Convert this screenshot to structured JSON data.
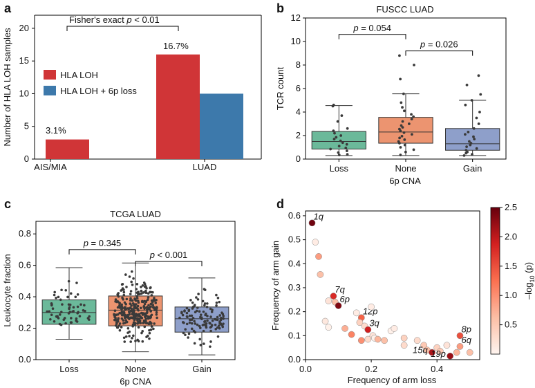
{
  "colors": {
    "hla_loh": "#d03537",
    "hla_6p": "#3d79ab",
    "loss_box": "#6bb99a",
    "none_box": "#ec9470",
    "gain_box": "#8e9fca",
    "cmap_low": "#fff5f0",
    "cmap_mid": "#f0603f",
    "cmap_high": "#67000d"
  },
  "chart_data": [
    {
      "panel": "a",
      "type": "bar",
      "categories": [
        "AIS/MIA",
        "LUAD"
      ],
      "series": [
        {
          "name": "HLA LOH",
          "values": [
            3,
            16
          ]
        },
        {
          "name": "HLA LOH + 6p loss",
          "values": [
            0,
            10
          ]
        }
      ],
      "ylabel": "Number of HLA LOH samples",
      "ylim": [
        0,
        22
      ],
      "yticks": [
        "0",
        "5",
        "10",
        "15",
        "20"
      ],
      "value_labels": [
        "3.1%",
        "16.7%"
      ],
      "annotation": {
        "prefix": "Fisher's exact ",
        "p": "p",
        "suffix": " < 0.01"
      }
    },
    {
      "panel": "b",
      "type": "box",
      "title": "FUSCC LUAD",
      "categories": [
        "Loss",
        "None",
        "Gain"
      ],
      "xlabel": "6p CNA",
      "ylabel": "TCR count",
      "ylim": [
        0,
        12
      ],
      "yticks": [
        "0",
        "2",
        "4",
        "6",
        "8",
        "10",
        "12"
      ],
      "boxes": [
        {
          "q1": 0.85,
          "median": 1.5,
          "q3": 2.35,
          "whislo": 0.3,
          "whishi": 4.55
        },
        {
          "q1": 1.35,
          "median": 2.3,
          "q3": 3.55,
          "whislo": 0.3,
          "whishi": 5.55
        },
        {
          "q1": 0.75,
          "median": 1.3,
          "q3": 2.6,
          "whislo": 0.3,
          "whishi": 5.0
        }
      ],
      "points": [
        [
          0.35,
          0.4,
          0.55,
          0.7,
          0.85,
          0.95,
          1.1,
          1.25,
          1.4,
          1.55,
          1.7,
          1.85,
          2.0,
          2.2,
          2.4,
          2.6,
          3.2,
          3.7,
          4.5,
          4.6
        ],
        [
          0.35,
          0.6,
          0.8,
          1.0,
          1.2,
          1.35,
          1.5,
          1.65,
          1.8,
          1.95,
          2.1,
          2.25,
          2.4,
          2.55,
          2.7,
          2.85,
          3.0,
          3.2,
          3.4,
          3.6,
          3.8,
          4.1,
          4.4,
          4.8,
          5.55,
          6.8,
          8.0,
          8.8
        ],
        [
          0.3,
          0.4,
          0.5,
          0.6,
          0.75,
          0.9,
          1.05,
          1.2,
          1.35,
          1.5,
          1.7,
          1.9,
          2.1,
          2.3,
          2.6,
          3.0,
          3.5,
          4.0,
          4.6,
          5.0,
          5.5,
          6.3,
          7.1
        ]
      ],
      "comparisons": [
        {
          "pair": [
            0,
            1
          ],
          "label": " = 0.054",
          "y": 10.6
        },
        {
          "pair": [
            1,
            2
          ],
          "label": " = 0.026",
          "y": 9.2
        }
      ]
    },
    {
      "panel": "c",
      "type": "box",
      "title": "TCGA LUAD",
      "categories": [
        "Loss",
        "None",
        "Gain"
      ],
      "xlabel": "6p CNA",
      "ylabel": "Leukocyte fraction",
      "ylim": [
        0,
        0.88
      ],
      "yticks": [
        "0.0",
        "0.2",
        "0.4",
        "0.6",
        "0.8"
      ],
      "boxes": [
        {
          "q1": 0.225,
          "median": 0.3,
          "q3": 0.38,
          "whislo": 0.13,
          "whishi": 0.585
        },
        {
          "q1": 0.215,
          "median": 0.315,
          "q3": 0.405,
          "whislo": 0.05,
          "whishi": 0.615
        },
        {
          "q1": 0.175,
          "median": 0.26,
          "q3": 0.335,
          "whislo": 0.03,
          "whishi": 0.52
        }
      ],
      "point_counts": [
        60,
        320,
        120
      ],
      "comparisons": [
        {
          "pair": [
            0,
            1
          ],
          "label": " = 0.345",
          "y": 0.7
        },
        {
          "pair": [
            1,
            2
          ],
          "label": " < 0.001",
          "y": 0.625
        }
      ]
    },
    {
      "panel": "d",
      "type": "scatter",
      "xlabel": "Frequency of arm loss",
      "ylabel": "Frequency of arm gain",
      "xlim": [
        0,
        0.53
      ],
      "ylim": [
        0,
        0.62
      ],
      "xticks": [
        "0.0",
        "0.2",
        "0.4"
      ],
      "yticks": [
        "0.0",
        "0.1",
        "0.2",
        "0.3",
        "0.4",
        "0.5",
        "0.6"
      ],
      "colorbar": {
        "label_prefix": "–log",
        "label_sub": "10",
        "label_suffix": " (p)",
        "ticks": [
          "0.5",
          "1.0",
          "1.5",
          "2.0",
          "2.5"
        ],
        "range": [
          0,
          2.5
        ]
      },
      "points": [
        {
          "x": 0.02,
          "y": 0.57,
          "v": 2.45,
          "label": "1q"
        },
        {
          "x": 0.03,
          "y": 0.49,
          "v": 0.1
        },
        {
          "x": 0.04,
          "y": 0.43,
          "v": 0.9
        },
        {
          "x": 0.045,
          "y": 0.355,
          "v": 0.6
        },
        {
          "x": 0.07,
          "y": 0.245,
          "v": 0.2
        },
        {
          "x": 0.085,
          "y": 0.265,
          "v": 1.8,
          "label": "7q"
        },
        {
          "x": 0.09,
          "y": 0.24,
          "v": 0.6
        },
        {
          "x": 0.1,
          "y": 0.225,
          "v": 2.35,
          "label": "6p"
        },
        {
          "x": 0.06,
          "y": 0.16,
          "v": 0.15
        },
        {
          "x": 0.07,
          "y": 0.135,
          "v": 0.05
        },
        {
          "x": 0.12,
          "y": 0.13,
          "v": 0.75
        },
        {
          "x": 0.14,
          "y": 0.105,
          "v": 1.1
        },
        {
          "x": 0.155,
          "y": 0.195,
          "v": 0.1
        },
        {
          "x": 0.17,
          "y": 0.175,
          "v": 1.35,
          "label": "12p"
        },
        {
          "x": 0.165,
          "y": 0.155,
          "v": 0.4
        },
        {
          "x": 0.18,
          "y": 0.14,
          "v": 0.3
        },
        {
          "x": 0.19,
          "y": 0.125,
          "v": 1.9,
          "label": "3q"
        },
        {
          "x": 0.2,
          "y": 0.22,
          "v": 0.1
        },
        {
          "x": 0.205,
          "y": 0.1,
          "v": 0.2
        },
        {
          "x": 0.21,
          "y": 0.09,
          "v": 0.05
        },
        {
          "x": 0.17,
          "y": 0.08,
          "v": 1.0
        },
        {
          "x": 0.19,
          "y": 0.085,
          "v": 0.3
        },
        {
          "x": 0.22,
          "y": 0.085,
          "v": 0.7
        },
        {
          "x": 0.24,
          "y": 0.08,
          "v": 0.6
        },
        {
          "x": 0.26,
          "y": 0.12,
          "v": 0.05
        },
        {
          "x": 0.27,
          "y": 0.13,
          "v": 0.1
        },
        {
          "x": 0.3,
          "y": 0.09,
          "v": 0.4
        },
        {
          "x": 0.3,
          "y": 0.06,
          "v": 0.3
        },
        {
          "x": 0.34,
          "y": 0.08,
          "v": 0.3
        },
        {
          "x": 0.36,
          "y": 0.06,
          "v": 0.5
        },
        {
          "x": 0.37,
          "y": 0.04,
          "v": 0.6
        },
        {
          "x": 0.4,
          "y": 0.05,
          "v": 0.4
        },
        {
          "x": 0.41,
          "y": 0.035,
          "v": 0.5
        },
        {
          "x": 0.385,
          "y": 0.03,
          "v": 2.1,
          "label": "15q"
        },
        {
          "x": 0.43,
          "y": 0.06,
          "v": 0.2
        },
        {
          "x": 0.44,
          "y": 0.015,
          "v": 2.2,
          "label": "19p"
        },
        {
          "x": 0.46,
          "y": 0.03,
          "v": 0.7
        },
        {
          "x": 0.47,
          "y": 0.1,
          "v": 1.5,
          "label": "8p"
        },
        {
          "x": 0.47,
          "y": 0.055,
          "v": 0.9,
          "label": "6q"
        },
        {
          "x": 0.5,
          "y": 0.03,
          "v": 0.6
        }
      ]
    }
  ]
}
